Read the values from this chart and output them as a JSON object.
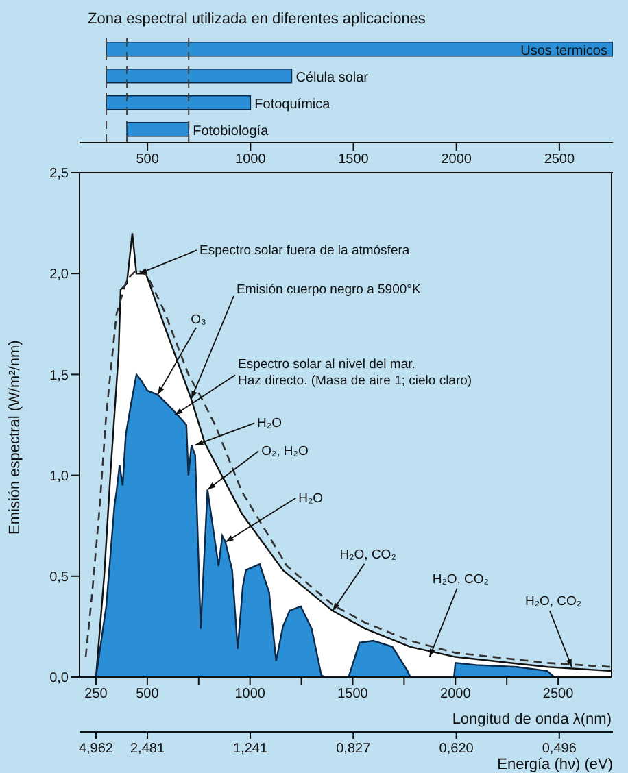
{
  "chart_data": [
    {
      "type": "bar",
      "orientation": "horizontal",
      "title": "Zona espectral utilizada en diferentes aplicaciones",
      "categories": [
        "Usos termicos",
        "Célula solar",
        "Fotoquímica",
        "Fotobiología"
      ],
      "base": [
        300,
        300,
        300,
        400
      ],
      "values": [
        2460,
        900,
        700,
        300
      ],
      "color": "#2a8fd6",
      "xlim": [
        170,
        2760
      ],
      "xticks": [
        500,
        1000,
        1500,
        2000,
        2500
      ],
      "ref_lines": [
        {
          "axis": "x",
          "value": 300,
          "line_style": "dashed",
          "color": "#444444"
        },
        {
          "axis": "x",
          "value": 400,
          "line_style": "dashed",
          "color": "#444444"
        },
        {
          "axis": "x",
          "value": 700,
          "line_style": "dashed",
          "color": "#444444"
        }
      ]
    },
    {
      "type": "line",
      "xlabel": "Longitud de onda λ(nm)",
      "ylabel": "Emisión espectral (W/m²/nm)",
      "xlim": [
        170,
        2760
      ],
      "xticks": [
        250,
        500,
        {
          "value": 750,
          "label": null
        },
        1000,
        {
          "value": 1250,
          "label": null
        },
        1500,
        {
          "value": 1750,
          "label": null
        },
        2000,
        {
          "value": 2250,
          "label": null
        },
        2500
      ],
      "ylim": [
        0,
        2.5
      ],
      "yticks": [
        {
          "value": 0,
          "label": "0,0"
        },
        {
          "value": 0.5,
          "label": "0,5"
        },
        {
          "value": 1,
          "label": "1,0"
        },
        {
          "value": 1.5,
          "label": "1,5"
        },
        {
          "value": 2,
          "label": "2,0"
        },
        {
          "value": 2.5,
          "label": "2,5"
        }
      ],
      "series": [
        {
          "type": "area",
          "color": "#ffffff",
          "x": [
            250,
            290,
            320,
            340,
            360,
            370,
            400,
            427,
            447,
            493,
            580,
            713,
            780,
            960,
            1160,
            1400,
            1560,
            1780,
            2000,
            2450,
            2760
          ],
          "values": [
            0,
            0.5,
            1.0,
            1.3,
            1.6,
            1.92,
            1.95,
            2.2,
            2.0,
            2.0,
            1.75,
            1.38,
            1.16,
            0.81,
            0.53,
            0.33,
            0.24,
            0.15,
            0.1,
            0.05,
            0.03
          ]
        },
        {
          "type": "area",
          "color": "#2a8fd6",
          "x": [
            250,
            300,
            340,
            350,
            365,
            380,
            395,
            420,
            447,
            470,
            500,
            550,
            600,
            647,
            690,
            700,
            715,
            733,
            760,
            793,
            827,
            847,
            865,
            880,
            913,
            940,
            965,
            980,
            1047,
            1093,
            1127,
            1160,
            1193,
            1247,
            1300,
            1347,
            1360,
            1480,
            1533,
            1600,
            1693,
            1767,
            1780,
            1993,
            2000,
            2100,
            2300,
            2447,
            2480
          ],
          "values": [
            0,
            0.35,
            0.85,
            0.92,
            1.05,
            0.95,
            1.2,
            1.35,
            1.5,
            1.47,
            1.42,
            1.4,
            1.35,
            1.3,
            1.25,
            1.0,
            1.15,
            1.1,
            0.24,
            0.93,
            0.69,
            0.55,
            0.7,
            0.67,
            0.53,
            0.14,
            0.45,
            0.53,
            0.56,
            0.42,
            0.08,
            0.25,
            0.33,
            0.35,
            0.24,
            0.01,
            0,
            0,
            0.17,
            0.18,
            0.15,
            0.03,
            0,
            0,
            0.07,
            0.06,
            0.05,
            0.03,
            0
          ]
        },
        {
          "type": "line",
          "color": "#333333",
          "line_style": "dashed",
          "x": [
            200,
            230,
            267,
            300,
            350,
            400,
            450,
            500,
            580,
            700,
            760,
            830,
            960,
            1180,
            1400,
            1560,
            1780,
            2000,
            2450,
            2760
          ],
          "values": [
            0.1,
            0.4,
            0.83,
            1.3,
            1.8,
            1.97,
            2.02,
            1.99,
            1.82,
            1.5,
            1.39,
            1.25,
            0.92,
            0.55,
            0.36,
            0.27,
            0.18,
            0.12,
            0.07,
            0.05
          ]
        }
      ],
      "annotations": [
        {
          "text": "Espectro solar fuera de la atmósfera",
          "x": 460,
          "y": 2.0
        },
        {
          "text": "Emisión cuerpo negro a 5900°K",
          "x": 713,
          "y": 1.38
        },
        {
          "text": "O₃",
          "x": 550,
          "y": 1.4
        },
        {
          "text": "Espectro solar al nivel del mar.\nHaz directo. (Masa de aire 1; cielo claro)",
          "x": 633,
          "y": 1.3
        },
        {
          "text": "H₂O",
          "x": 733,
          "y": 1.15
        },
        {
          "text": "O₂, H₂O",
          "x": 793,
          "y": 0.93
        },
        {
          "text": "H₂O",
          "x": 880,
          "y": 0.67
        },
        {
          "text": "H₂O, CO₂",
          "x": 1400,
          "y": 0.33
        },
        {
          "text": "H₂O, CO₂",
          "x": 1870,
          "y": 0.1
        },
        {
          "text": "H₂O, CO₂",
          "x": 2560,
          "y": 0.05
        }
      ]
    },
    {
      "type": "other",
      "xlabel": "Energía (hν) (eV)",
      "categories": [
        "4,962",
        "2,481",
        "1,241",
        "0,827",
        "0,620",
        "0,496"
      ]
    }
  ]
}
